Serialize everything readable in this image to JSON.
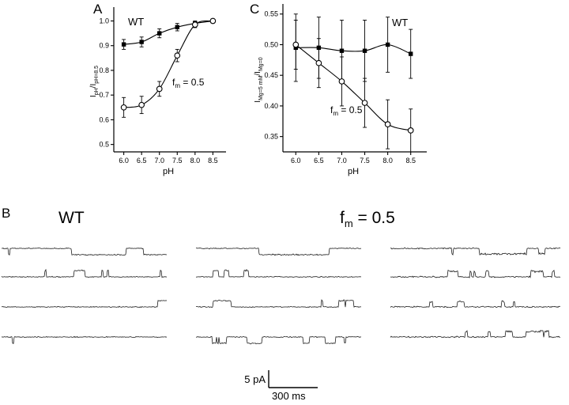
{
  "figure": {
    "panel_a_label": "A",
    "panel_b_label": "B",
    "panel_c_label": "C"
  },
  "chart_data": [
    {
      "id": "panel-a",
      "type": "line",
      "title": "",
      "xlabel": "pH",
      "ylabel": "I_pH / I_pH=8.5",
      "ylabel_parts": [
        {
          "t": "I"
        },
        {
          "t": "pH",
          "sub": true
        },
        {
          "t": "/I"
        },
        {
          "t": "pH=8.5",
          "sub": true
        }
      ],
      "x": [
        6.0,
        6.5,
        7.0,
        7.5,
        8.0,
        8.5
      ],
      "xtick_labels": [
        "6.0",
        "6.5",
        "7.0",
        "7.5",
        "8.0",
        "8.5"
      ],
      "xlim": [
        5.72,
        8.78
      ],
      "yticks": [
        0.5,
        0.6,
        0.7,
        0.8,
        0.9,
        1.0
      ],
      "ytick_labels": [
        "0.5",
        "0.6",
        "0.7",
        "0.8",
        "0.9",
        "1.0"
      ],
      "ylim": [
        0.47,
        1.04
      ],
      "grid": false,
      "legend_position": "none",
      "series": [
        {
          "name": "WT",
          "marker": "filled-square",
          "values": [
            0.905,
            0.915,
            0.95,
            0.975,
            0.99,
            1.0
          ],
          "errors": [
            0.02,
            0.02,
            0.018,
            0.015,
            0.01,
            0.008
          ]
        },
        {
          "name": "fm = 0.5",
          "marker": "open-circle",
          "values": [
            0.65,
            0.66,
            0.725,
            0.86,
            0.985,
            1.0
          ],
          "errors": [
            0.04,
            0.035,
            0.03,
            0.025,
            0.012,
            0.008
          ]
        }
      ],
      "annotations": [
        {
          "parts": [
            {
              "t": "WT"
            }
          ],
          "x": 52,
          "y": 32,
          "size": 13
        },
        {
          "parts": [
            {
              "t": "f"
            },
            {
              "t": "m",
              "sub": true
            },
            {
              "t": " = 0.5"
            }
          ],
          "x": 108,
          "y": 108,
          "size": 12
        }
      ]
    },
    {
      "id": "panel-c",
      "type": "line",
      "title": "",
      "xlabel": "pH",
      "ylabel": "I_Mg=5 mM / I_Mg=0",
      "ylabel_parts": [
        {
          "t": "I"
        },
        {
          "t": "Mg=5 mM",
          "sub": true
        },
        {
          "t": "/I"
        },
        {
          "t": "Mg=0",
          "sub": true
        }
      ],
      "x": [
        6.0,
        6.5,
        7.0,
        7.5,
        8.0,
        8.5
      ],
      "xtick_labels": [
        "6.0",
        "6.5",
        "7.0",
        "7.5",
        "8.0",
        "8.5"
      ],
      "xlim": [
        5.72,
        8.78
      ],
      "yticks": [
        0.35,
        0.4,
        0.45,
        0.5,
        0.55
      ],
      "ytick_labels": [
        "0.35",
        "0.40",
        "0.45",
        "0.50",
        "0.55"
      ],
      "ylim": [
        0.325,
        0.56
      ],
      "grid": false,
      "legend_position": "none",
      "series": [
        {
          "name": "WT",
          "marker": "filled-square",
          "values": [
            0.495,
            0.495,
            0.49,
            0.49,
            0.5,
            0.485
          ],
          "errors": [
            0.055,
            0.05,
            0.05,
            0.05,
            0.045,
            0.04
          ]
        },
        {
          "name": "fm = 0.5",
          "marker": "open-circle",
          "values": [
            0.5,
            0.47,
            0.44,
            0.405,
            0.37,
            0.36
          ],
          "errors": [
            0.04,
            0.04,
            0.04,
            0.04,
            0.04,
            0.035
          ]
        }
      ],
      "annotations": [
        {
          "parts": [
            {
              "t": "WT"
            }
          ],
          "x": 178,
          "y": 33,
          "size": 13
        },
        {
          "parts": [
            {
              "t": "f"
            },
            {
              "t": "m",
              "sub": true
            },
            {
              "t": " = 0.5"
            }
          ],
          "x": 100,
          "y": 143,
          "size": 12
        }
      ]
    }
  ],
  "traces": {
    "wt_heading": "WT",
    "fm_heading": {
      "base": "f",
      "sub": "m",
      "rest": " = 0.5"
    },
    "scalebar": {
      "current": "5 pA",
      "time": "300 ms"
    },
    "rows_per_column": 4,
    "columns": [
      {
        "name": "wt-traces",
        "seed": 11,
        "open_rate": 0.007,
        "mean_open": 16,
        "amp": 8,
        "noise": 0.55,
        "open_noise": 0.8,
        "directions": [
          1,
          -1,
          -1,
          1
        ],
        "forced_row1": [
          0.42,
          0.75
        ]
      },
      {
        "name": "center-traces",
        "seed": 22,
        "open_rate": 0.01,
        "mean_open": 12,
        "amp": 8,
        "noise": 0.6,
        "open_noise": 1.2,
        "directions": [
          1,
          -1,
          -1,
          1
        ],
        "forced_row1": [
          0.38,
          0.8
        ]
      },
      {
        "name": "fm-traces",
        "seed": 33,
        "open_rate": 0.022,
        "mean_open": 7,
        "amp": 7,
        "noise": 0.8,
        "open_noise": 2.2,
        "directions": [
          1,
          -1,
          -1,
          -1
        ],
        "forced_row1": [
          0.52,
          0.8
        ]
      }
    ]
  }
}
